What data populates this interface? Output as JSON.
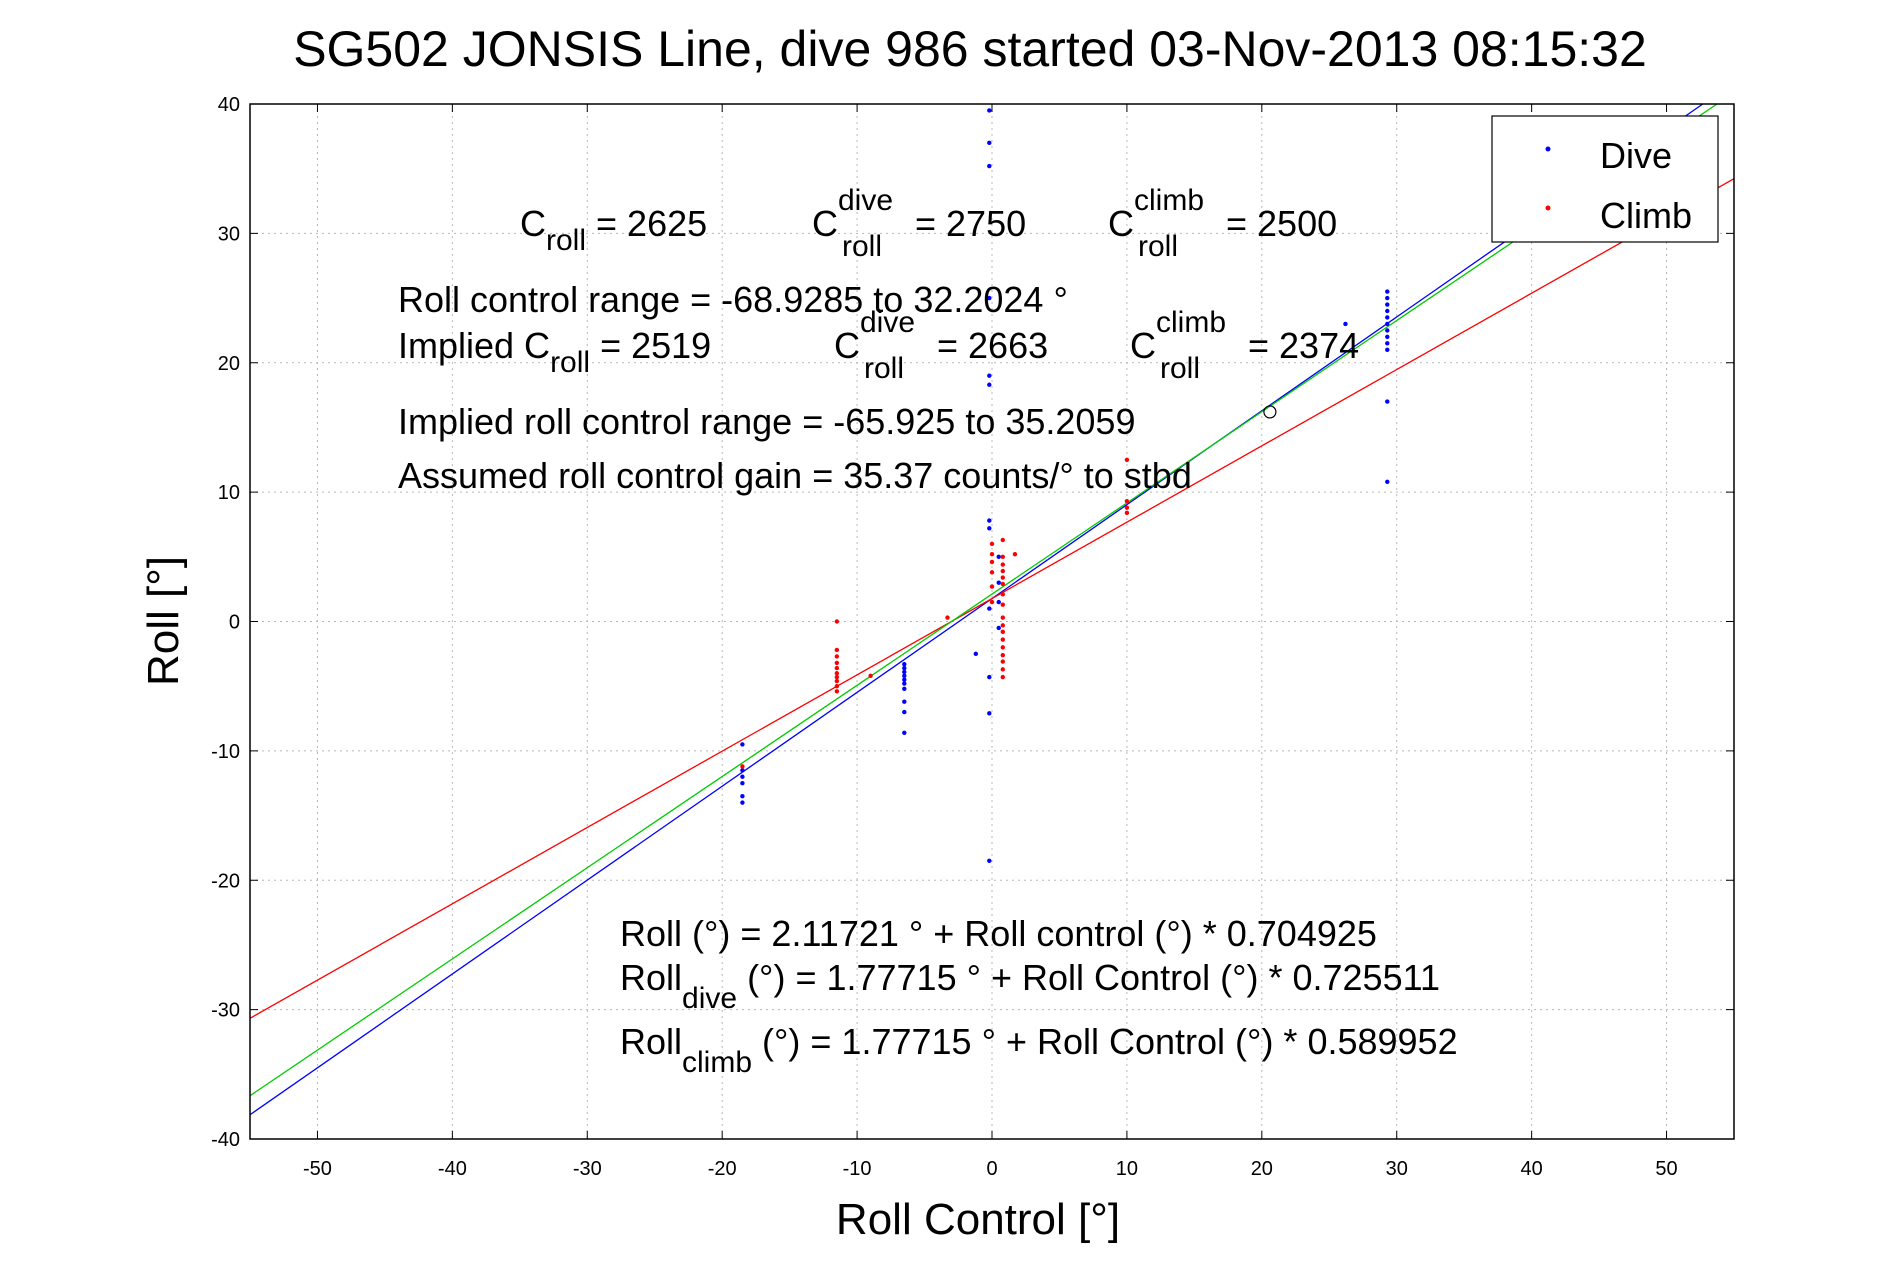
{
  "chart_data": {
    "type": "scatter",
    "title": "SG502 JONSIS Line, dive 986 started 03-Nov-2013 08:15:32",
    "xlabel": "Roll Control [°]",
    "ylabel": "Roll [°]",
    "xlim": [
      -55,
      55
    ],
    "ylim": [
      -40,
      40
    ],
    "xticks": [
      -50,
      -40,
      -30,
      -20,
      -10,
      0,
      10,
      20,
      30,
      40,
      50
    ],
    "yticks": [
      -40,
      -30,
      -20,
      -10,
      0,
      10,
      20,
      30,
      40
    ],
    "grid": true,
    "legend": {
      "placement": "top-right",
      "entries": [
        "Dive",
        "Climb"
      ]
    },
    "colors": {
      "dive": "#0000ff",
      "climb": "#ff0000",
      "combined_fit": "#00cc00"
    },
    "series": [
      {
        "name": "Dive",
        "color": "#0000ff",
        "points": [
          [
            -18.5,
            -9.5
          ],
          [
            -18.5,
            -11.5
          ],
          [
            -18.5,
            -12
          ],
          [
            -18.5,
            -12.5
          ],
          [
            -18.5,
            -13.5
          ],
          [
            -18.5,
            -14
          ],
          [
            -6.5,
            -3.3
          ],
          [
            -6.5,
            -3.6
          ],
          [
            -6.5,
            -3.9
          ],
          [
            -6.5,
            -4.2
          ],
          [
            -6.5,
            -4.5
          ],
          [
            -6.5,
            -4.8
          ],
          [
            -6.5,
            -5.2
          ],
          [
            -6.5,
            -6.2
          ],
          [
            -6.5,
            -7
          ],
          [
            -6.5,
            -8.6
          ],
          [
            -0.2,
            39.5
          ],
          [
            -0.2,
            37
          ],
          [
            -0.2,
            35.2
          ],
          [
            -0.2,
            25
          ],
          [
            -0.2,
            19
          ],
          [
            -0.2,
            18.3
          ],
          [
            -0.2,
            7.8
          ],
          [
            -0.2,
            7.2
          ],
          [
            -0.2,
            1
          ],
          [
            -0.2,
            -4.3
          ],
          [
            -0.2,
            -7.1
          ],
          [
            -0.2,
            -18.5
          ],
          [
            -1.2,
            -2.5
          ],
          [
            0.5,
            5
          ],
          [
            0.5,
            3
          ],
          [
            0.5,
            1.5
          ],
          [
            0.5,
            -0.5
          ],
          [
            26.2,
            23
          ],
          [
            29.3,
            25.5
          ],
          [
            29.3,
            25
          ],
          [
            29.3,
            24.5
          ],
          [
            29.3,
            24
          ],
          [
            29.3,
            23.5
          ],
          [
            29.3,
            23
          ],
          [
            29.3,
            22.5
          ],
          [
            29.3,
            22
          ],
          [
            29.3,
            21.5
          ],
          [
            29.3,
            21
          ],
          [
            29.3,
            17
          ],
          [
            29.3,
            10.8
          ]
        ]
      },
      {
        "name": "Climb",
        "color": "#ff0000",
        "points": [
          [
            -18.5,
            -11.2
          ],
          [
            -11.5,
            0
          ],
          [
            -11.5,
            -2.2
          ],
          [
            -11.5,
            -2.7
          ],
          [
            -11.5,
            -3.2
          ],
          [
            -11.5,
            -3.6
          ],
          [
            -11.5,
            -4
          ],
          [
            -11.5,
            -4.3
          ],
          [
            -11.5,
            -4.6
          ],
          [
            -11.5,
            -5
          ],
          [
            -11.5,
            -5.4
          ],
          [
            -9,
            -4.2
          ],
          [
            -3.3,
            0.3
          ],
          [
            0,
            6
          ],
          [
            0,
            5.2
          ],
          [
            0,
            4.6
          ],
          [
            0,
            3.8
          ],
          [
            0,
            2.7
          ],
          [
            0,
            1.5
          ],
          [
            0.8,
            6.3
          ],
          [
            0.8,
            5
          ],
          [
            0.8,
            4.4
          ],
          [
            0.8,
            3.9
          ],
          [
            0.8,
            3.4
          ],
          [
            0.8,
            2.9
          ],
          [
            0.8,
            2.1
          ],
          [
            0.8,
            1.3
          ],
          [
            0.8,
            0.3
          ],
          [
            0.8,
            -0.3
          ],
          [
            0.8,
            -0.8
          ],
          [
            0.8,
            -1.4
          ],
          [
            0.8,
            -2
          ],
          [
            0.8,
            -2.6
          ],
          [
            0.8,
            -3.1
          ],
          [
            0.8,
            -3.7
          ],
          [
            0.8,
            -4.3
          ],
          [
            1.7,
            5.2
          ],
          [
            10,
            12.5
          ],
          [
            10,
            9.3
          ],
          [
            10,
            8.8
          ],
          [
            10,
            8.4
          ]
        ]
      }
    ],
    "fit_lines": [
      {
        "series": "Dive",
        "color": "#0000ff",
        "intercept": 1.77715,
        "slope": 0.725511
      },
      {
        "series": "Climb",
        "color": "#ff0000",
        "intercept": 1.77715,
        "slope": 0.589952
      },
      {
        "series": "Combined",
        "color": "#00cc00",
        "intercept": 2.11721,
        "slope": 0.704925
      }
    ],
    "markers": [
      {
        "x": 20.6,
        "y": 16.2,
        "shape": "circle"
      }
    ],
    "annotations": {
      "croll": {
        "base": "C",
        "sub": "roll",
        "text": " = 2625"
      },
      "croll_dive": {
        "base": "C",
        "sup": "dive",
        "sub": "roll",
        "text": " = 2750"
      },
      "croll_climb": {
        "base": "C",
        "sup": "climb",
        "sub": "roll",
        "text": " = 2500"
      },
      "range_text": "Roll control range = -68.9285 to 32.2024 °",
      "implied_prefix": "Implied C",
      "implied_sub": "roll",
      "implied_text": " = 2519",
      "implied_dive": {
        "base": "C",
        "sup": "dive",
        "sub": "roll",
        "text": " = 2663"
      },
      "implied_climb": {
        "base": "C",
        "sup": "climb",
        "sub": "roll",
        "text": " = 2374"
      },
      "implied_range": "Implied roll control range = -65.925 to 35.2059",
      "gain": "Assumed roll control gain = 35.37 counts/° to stbd",
      "fit_all": "Roll (°) = 2.11721 ° + Roll control (°) * 0.704925",
      "fit_dive": {
        "base": "Roll",
        "sub": "dive",
        "text": " (°) = 1.77715 ° + Roll Control (°) * 0.725511"
      },
      "fit_climb": {
        "base": "Roll",
        "sub": "climb",
        "text": " (°) = 1.77715 ° + Roll Control (°) * 0.589952"
      }
    }
  }
}
